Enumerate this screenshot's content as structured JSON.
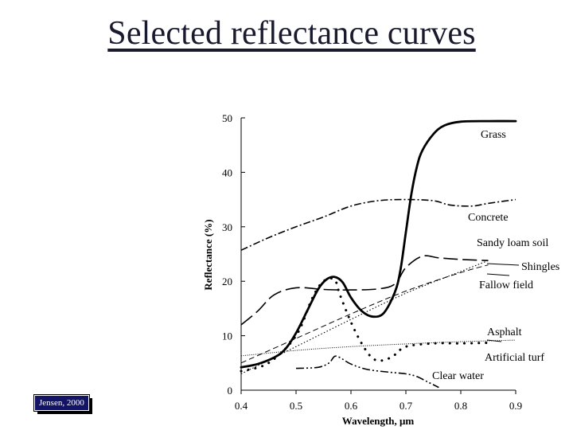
{
  "slide": {
    "title": "Selected reflectance curves",
    "credit": "Jensen, 2000"
  },
  "chart_data": {
    "type": "line",
    "title": "",
    "xlabel": "Wavelength, μm",
    "ylabel": "Reflectance (%)",
    "xlim": [
      0.4,
      0.9
    ],
    "ylim": [
      0,
      50
    ],
    "x_ticks": [
      "0.4",
      "0.5",
      "0.6",
      "0.7",
      "0.8",
      "0.9"
    ],
    "y_ticks": [
      "0",
      "10",
      "20",
      "30",
      "40",
      "50"
    ],
    "grid": false,
    "series": [
      {
        "name": "Grass",
        "style": "thick-solid",
        "points": [
          [
            0.4,
            4.2
          ],
          [
            0.43,
            4.8
          ],
          [
            0.46,
            6.0
          ],
          [
            0.48,
            7.5
          ],
          [
            0.5,
            10.5
          ],
          [
            0.52,
            14.5
          ],
          [
            0.54,
            18.5
          ],
          [
            0.555,
            20.3
          ],
          [
            0.57,
            20.8
          ],
          [
            0.585,
            19.8
          ],
          [
            0.6,
            17.0
          ],
          [
            0.62,
            14.5
          ],
          [
            0.64,
            13.5
          ],
          [
            0.66,
            14.2
          ],
          [
            0.68,
            18.0
          ],
          [
            0.69,
            22.0
          ],
          [
            0.7,
            29.0
          ],
          [
            0.71,
            36.0
          ],
          [
            0.72,
            41.0
          ],
          [
            0.73,
            44.0
          ],
          [
            0.75,
            47.0
          ],
          [
            0.77,
            48.6
          ],
          [
            0.8,
            49.3
          ],
          [
            0.85,
            49.4
          ],
          [
            0.9,
            49.4
          ]
        ]
      },
      {
        "name": "Concrete",
        "style": "dash-dot",
        "points": [
          [
            0.4,
            25.7
          ],
          [
            0.45,
            28.0
          ],
          [
            0.5,
            30.0
          ],
          [
            0.55,
            31.8
          ],
          [
            0.6,
            33.8
          ],
          [
            0.65,
            34.8
          ],
          [
            0.7,
            35.0
          ],
          [
            0.75,
            34.8
          ],
          [
            0.78,
            34.0
          ],
          [
            0.82,
            33.8
          ],
          [
            0.85,
            34.3
          ],
          [
            0.9,
            35.0
          ]
        ]
      },
      {
        "name": "Sandy loam soil",
        "style": "long-dash",
        "points": [
          [
            0.4,
            12.0
          ],
          [
            0.43,
            14.5
          ],
          [
            0.46,
            17.5
          ],
          [
            0.5,
            18.8
          ],
          [
            0.55,
            18.5
          ],
          [
            0.6,
            18.4
          ],
          [
            0.65,
            18.6
          ],
          [
            0.68,
            19.5
          ],
          [
            0.7,
            22.5
          ],
          [
            0.73,
            24.6
          ],
          [
            0.76,
            24.3
          ],
          [
            0.8,
            24.0
          ],
          [
            0.85,
            23.8
          ]
        ]
      },
      {
        "name": "Shingles",
        "style": "dashed",
        "points": [
          [
            0.4,
            5.0
          ],
          [
            0.5,
            9.5
          ],
          [
            0.6,
            14.0
          ],
          [
            0.7,
            18.2
          ],
          [
            0.8,
            21.6
          ],
          [
            0.85,
            23.0
          ]
        ]
      },
      {
        "name": "Fallow field",
        "style": "dotted",
        "points": [
          [
            0.4,
            3.0
          ],
          [
            0.5,
            8.0
          ],
          [
            0.6,
            13.0
          ],
          [
            0.7,
            17.8
          ],
          [
            0.8,
            21.8
          ],
          [
            0.85,
            23.8
          ]
        ]
      },
      {
        "name": "Asphalt",
        "style": "fine-dotted",
        "points": [
          [
            0.4,
            6.3
          ],
          [
            0.5,
            7.3
          ],
          [
            0.6,
            8.0
          ],
          [
            0.7,
            8.5
          ],
          [
            0.8,
            8.9
          ],
          [
            0.9,
            9.2
          ]
        ]
      },
      {
        "name": "Artificial turf",
        "style": "sparse-dots",
        "points": [
          [
            0.4,
            3.5
          ],
          [
            0.45,
            5.0
          ],
          [
            0.5,
            10.0
          ],
          [
            0.53,
            17.0
          ],
          [
            0.55,
            20.0
          ],
          [
            0.57,
            20.3
          ],
          [
            0.58,
            17.5
          ],
          [
            0.6,
            12.5
          ],
          [
            0.62,
            8.5
          ],
          [
            0.64,
            5.8
          ],
          [
            0.66,
            5.5
          ],
          [
            0.68,
            6.5
          ],
          [
            0.7,
            8.0
          ],
          [
            0.75,
            8.6
          ],
          [
            0.8,
            8.6
          ],
          [
            0.85,
            8.7
          ]
        ]
      },
      {
        "name": "Clear water",
        "style": "dash-dot-dot",
        "points": [
          [
            0.5,
            4.0
          ],
          [
            0.54,
            4.2
          ],
          [
            0.56,
            5.0
          ],
          [
            0.57,
            6.2
          ],
          [
            0.58,
            6.0
          ],
          [
            0.6,
            4.8
          ],
          [
            0.63,
            3.8
          ],
          [
            0.67,
            3.3
          ],
          [
            0.7,
            3.0
          ],
          [
            0.72,
            2.5
          ],
          [
            0.74,
            1.5
          ],
          [
            0.76,
            0.5
          ]
        ]
      }
    ]
  }
}
